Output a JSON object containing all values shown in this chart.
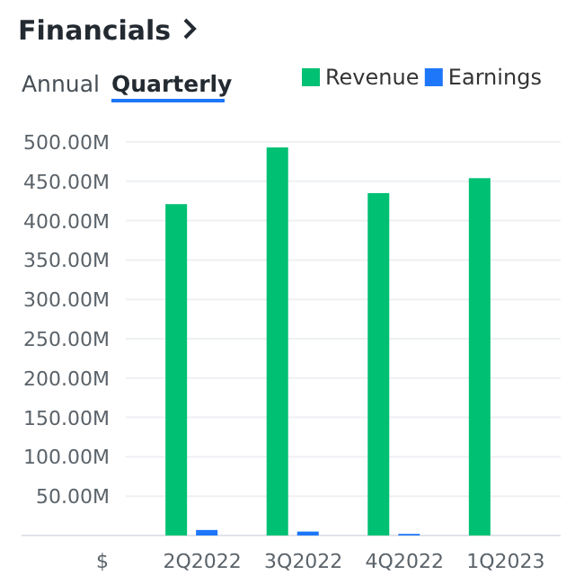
{
  "chart_data": {
    "type": "bar",
    "title": "Financials",
    "ylabel": "$",
    "annotations": [
      "Annual",
      "Quarterly"
    ],
    "categories": [
      "2Q2022",
      "3Q2022",
      "4Q2022",
      "1Q2023"
    ],
    "series": [
      {
        "name": "Revenue",
        "color": "#00c073",
        "values": [
          421,
          493,
          435,
          454
        ]
      },
      {
        "name": "Earnings",
        "color": "#1e77f8",
        "values": [
          7,
          5,
          2,
          null
        ]
      }
    ],
    "ylim": [
      0,
      500
    ],
    "yticks": [
      {
        "value": 0,
        "label": null
      },
      {
        "value": 50,
        "label": "50.00M"
      },
      {
        "value": 100,
        "label": "100.00M"
      },
      {
        "value": 150,
        "label": "150.00M"
      },
      {
        "value": 200,
        "label": "200.00M"
      },
      {
        "value": 250,
        "label": "250.00M"
      },
      {
        "value": 300,
        "label": "300.00M"
      },
      {
        "value": 350,
        "label": "350.00M"
      },
      {
        "value": 400,
        "label": "400.00M"
      },
      {
        "value": 450,
        "label": "450.00M"
      },
      {
        "value": 500,
        "label": "500.00M"
      }
    ],
    "grid": "y",
    "legend": "top right"
  }
}
